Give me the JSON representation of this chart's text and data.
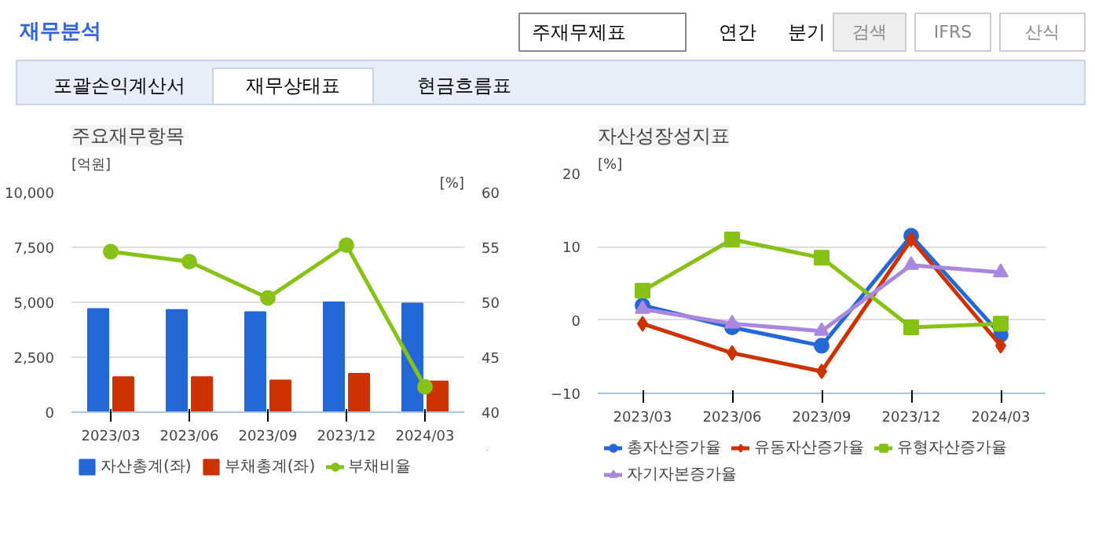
{
  "chart_data": [
    {
      "type": "other",
      "title": "재무분석",
      "annotations": [
        "주재무제표",
        "연간",
        "분기",
        "검색",
        "IFRS",
        "산식",
        "포괄손익계산서",
        "재무상태표",
        "현금흐름표"
      ]
    },
    {
      "type": "bar",
      "title": "주요재무항목",
      "ylabel": "[억원]",
      "y2label": "[%]",
      "categories": [
        "2023/03",
        "2023/06",
        "2023/09",
        "2023/12",
        "2024/03"
      ],
      "ylim": [
        0,
        10000
      ],
      "yticks": [
        0,
        {
          "value": 2500,
          "label": "2,500"
        },
        {
          "value": 5000,
          "label": "5,000"
        },
        {
          "value": 7500,
          "label": "7,500"
        },
        {
          "value": 10000,
          "label": "10,000"
        }
      ],
      "y2lim": [
        40,
        60
      ],
      "y2ticks": [
        40,
        45,
        50,
        55,
        60
      ],
      "grid": "y",
      "legend": "bottom",
      "series": [
        {
          "name": "자산총계(좌)",
          "color": "#2468d8",
          "values": [
            4700,
            4650,
            4550,
            5000,
            4950
          ]
        },
        {
          "name": "부채총계(좌)",
          "color": "#cc3300",
          "values": [
            1600,
            1600,
            1450,
            1750,
            1400
          ]
        },
        {
          "name": "부채비율",
          "type": "line",
          "axis": "y2",
          "marker": "circle",
          "color": "#88c219",
          "values": [
            54.6,
            53.7,
            50.4,
            55.2,
            42.3
          ]
        }
      ]
    },
    {
      "type": "line",
      "title": "자산성장성지표",
      "ylabel": "[%]",
      "categories": [
        "2023/03",
        "2023/06",
        "2023/09",
        "2023/12",
        "2024/03"
      ],
      "ylim": [
        -10,
        20
      ],
      "yticks": [
        -10,
        0,
        10,
        20
      ],
      "grid": "y",
      "legend": "bottom",
      "series": [
        {
          "name": "총자산증가율",
          "color": "#2468d8",
          "marker": "circle",
          "values": [
            2,
            -1,
            -3.5,
            11.5,
            -2
          ]
        },
        {
          "name": "유동자산증가율",
          "color": "#cc3300",
          "marker": "diamond",
          "values": [
            -0.5,
            -4.5,
            -7,
            11,
            -3.5
          ]
        },
        {
          "name": "유형자산증가율",
          "color": "#88c219",
          "marker": "square",
          "values": [
            4,
            11,
            8.5,
            -1,
            -0.5
          ]
        },
        {
          "name": "자기자본증가율",
          "color": "#aa88dd",
          "marker": "triangle",
          "values": [
            1.5,
            -0.5,
            -1.5,
            7.5,
            6.5
          ]
        }
      ]
    }
  ]
}
